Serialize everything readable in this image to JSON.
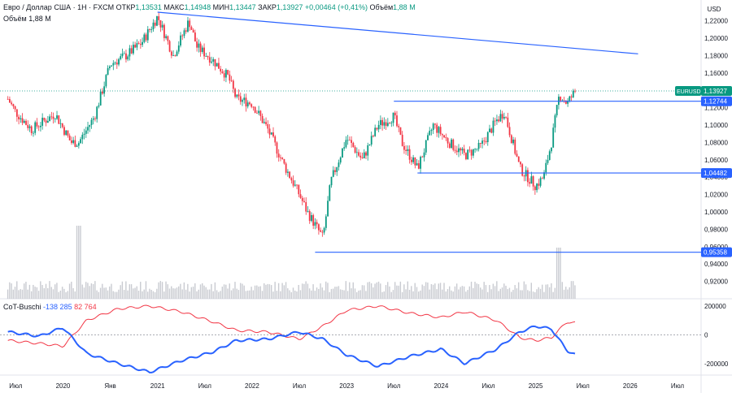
{
  "header": {
    "symbol_line": "Евро / Доллар США · 1Н · FXCM",
    "open_label": "ОТКР",
    "open_value": "1,13531",
    "high_label": "МАКС",
    "high_value": "1,14948",
    "low_label": "МИН",
    "low_value": "1,13447",
    "close_label": "ЗАКР",
    "close_value": "1,13927",
    "change": "+0,00464 (+0,41%)",
    "volume_label": "Объём",
    "volume_value": "1,88 M",
    "volume_line_label": "Объём",
    "volume_line_value": "1,88 M"
  },
  "indicator": {
    "name": "CoT-Buschi",
    "blue_value": "-138 285",
    "red_value": "82 764"
  },
  "colors": {
    "up": "#089981",
    "down": "#f23645",
    "blue": "#2962ff",
    "red_line": "#f23645",
    "volume": "#c9cbd1",
    "axis_text": "#131722"
  },
  "chart_data": {
    "type": "candlestick",
    "symbol": "EURUSD",
    "currency": "USD",
    "ylim": [
      0.9,
      1.244
    ],
    "y_ticks": [
      "1,22000",
      "1,20000",
      "1,18000",
      "1,16000",
      "1,14000",
      "1,12000",
      "1,10000",
      "1,08000",
      "1,06000",
      "1,04000",
      "1,02000",
      "1,00000",
      "0,98000",
      "0,96000",
      "0,94000",
      "0,92000"
    ],
    "x_ticks": [
      "Июл",
      "2020",
      "Янв",
      "2021",
      "Июл",
      "2022",
      "Июл",
      "2023",
      "Июл",
      "2024",
      "Июл",
      "2025",
      "Июл",
      "2026",
      "Июл"
    ],
    "x_range": [
      "2019-05",
      "2026-10"
    ],
    "price_path": [
      {
        "date": "2019-06",
        "close": 1.13
      },
      {
        "date": "2019-07",
        "close": 1.115
      },
      {
        "date": "2019-09",
        "close": 1.095
      },
      {
        "date": "2019-12",
        "close": 1.113
      },
      {
        "date": "2020-02",
        "close": 1.08
      },
      {
        "date": "2020-03",
        "close": 1.08
      },
      {
        "date": "2020-05",
        "close": 1.11
      },
      {
        "date": "2020-07",
        "close": 1.17
      },
      {
        "date": "2020-09",
        "close": 1.18
      },
      {
        "date": "2020-11",
        "close": 1.195
      },
      {
        "date": "2021-01",
        "close": 1.225
      },
      {
        "date": "2021-03",
        "close": 1.18
      },
      {
        "date": "2021-05",
        "close": 1.22
      },
      {
        "date": "2021-06",
        "close": 1.19
      },
      {
        "date": "2021-08",
        "close": 1.175
      },
      {
        "date": "2021-10",
        "close": 1.155
      },
      {
        "date": "2021-11",
        "close": 1.13
      },
      {
        "date": "2022-01",
        "close": 1.125
      },
      {
        "date": "2022-03",
        "close": 1.095
      },
      {
        "date": "2022-05",
        "close": 1.055
      },
      {
        "date": "2022-07",
        "close": 1.02
      },
      {
        "date": "2022-08",
        "close": 1.0
      },
      {
        "date": "2022-09",
        "close": 0.985
      },
      {
        "date": "2022-10",
        "close": 0.97
      },
      {
        "date": "2022-11",
        "close": 1.035
      },
      {
        "date": "2023-01",
        "close": 1.085
      },
      {
        "date": "2023-03",
        "close": 1.06
      },
      {
        "date": "2023-05",
        "close": 1.1
      },
      {
        "date": "2023-07",
        "close": 1.11
      },
      {
        "date": "2023-08",
        "close": 1.08
      },
      {
        "date": "2023-10",
        "close": 1.05
      },
      {
        "date": "2023-12",
        "close": 1.1
      },
      {
        "date": "2024-02",
        "close": 1.08
      },
      {
        "date": "2024-04",
        "close": 1.065
      },
      {
        "date": "2024-06",
        "close": 1.075
      },
      {
        "date": "2024-08",
        "close": 1.105
      },
      {
        "date": "2024-09",
        "close": 1.115
      },
      {
        "date": "2024-11",
        "close": 1.05
      },
      {
        "date": "2025-01",
        "close": 1.03
      },
      {
        "date": "2025-02",
        "close": 1.04
      },
      {
        "date": "2025-03",
        "close": 1.08
      },
      {
        "date": "2025-04",
        "close": 1.135
      },
      {
        "date": "2025-05",
        "close": 1.125
      },
      {
        "date": "2025-06",
        "close": 1.139
      }
    ],
    "volume_spikes": [
      {
        "date": "2020-03",
        "relative": 1.0
      },
      {
        "date": "2025-04",
        "relative": 0.7
      }
    ],
    "current_price": {
      "label": "EURUSD",
      "value": "1,13927",
      "price": 1.13927
    },
    "levels": [
      {
        "label": "1,12744",
        "price": 1.12744,
        "from": "2023-07"
      },
      {
        "label": "1,04482",
        "price": 1.04482,
        "from": "2023-10"
      },
      {
        "label": "0,95358",
        "price": 0.95358,
        "from": "2022-09"
      }
    ],
    "trendline": {
      "from": {
        "date": "2021-01",
        "price": 1.23
      },
      "to": {
        "date": "2026-02",
        "price": 1.182
      }
    },
    "volume": {
      "label": "Объём",
      "value": "1,88 M"
    },
    "indicator": {
      "name": "CoT-Buschi",
      "y_ticks": [
        "200000",
        "0",
        "-200000"
      ],
      "ylim": [
        -280000,
        250000
      ],
      "blue": [
        {
          "date": "2019-06",
          "value": 20000
        },
        {
          "date": "2019-10",
          "value": -10000
        },
        {
          "date": "2020-01",
          "value": 50000
        },
        {
          "date": "2020-04",
          "value": -130000
        },
        {
          "date": "2020-08",
          "value": -200000
        },
        {
          "date": "2020-12",
          "value": -260000
        },
        {
          "date": "2021-04",
          "value": -180000
        },
        {
          "date": "2021-08",
          "value": -120000
        },
        {
          "date": "2021-11",
          "value": -40000
        },
        {
          "date": "2022-03",
          "value": -30000
        },
        {
          "date": "2022-07",
          "value": 20000
        },
        {
          "date": "2022-10",
          "value": -30000
        },
        {
          "date": "2023-01",
          "value": -140000
        },
        {
          "date": "2023-05",
          "value": -220000
        },
        {
          "date": "2023-09",
          "value": -150000
        },
        {
          "date": "2024-01",
          "value": -100000
        },
        {
          "date": "2024-04",
          "value": -200000
        },
        {
          "date": "2024-08",
          "value": -100000
        },
        {
          "date": "2024-11",
          "value": 20000
        },
        {
          "date": "2025-01",
          "value": 60000
        },
        {
          "date": "2025-03",
          "value": 40000
        },
        {
          "date": "2025-05",
          "value": -110000
        },
        {
          "date": "2025-06",
          "value": -138285
        }
      ],
      "red": [
        {
          "date": "2019-06",
          "value": -40000
        },
        {
          "date": "2019-10",
          "value": -60000
        },
        {
          "date": "2020-01",
          "value": -80000
        },
        {
          "date": "2020-04",
          "value": 100000
        },
        {
          "date": "2020-08",
          "value": 180000
        },
        {
          "date": "2020-12",
          "value": 200000
        },
        {
          "date": "2021-04",
          "value": 160000
        },
        {
          "date": "2021-08",
          "value": 90000
        },
        {
          "date": "2021-11",
          "value": 30000
        },
        {
          "date": "2022-03",
          "value": 20000
        },
        {
          "date": "2022-07",
          "value": -30000
        },
        {
          "date": "2022-10",
          "value": 60000
        },
        {
          "date": "2023-01",
          "value": 170000
        },
        {
          "date": "2023-05",
          "value": 200000
        },
        {
          "date": "2023-09",
          "value": 150000
        },
        {
          "date": "2024-01",
          "value": 120000
        },
        {
          "date": "2024-04",
          "value": 160000
        },
        {
          "date": "2024-08",
          "value": 100000
        },
        {
          "date": "2024-11",
          "value": -20000
        },
        {
          "date": "2025-01",
          "value": -40000
        },
        {
          "date": "2025-03",
          "value": -20000
        },
        {
          "date": "2025-05",
          "value": 90000
        },
        {
          "date": "2025-06",
          "value": 82764
        }
      ]
    }
  }
}
